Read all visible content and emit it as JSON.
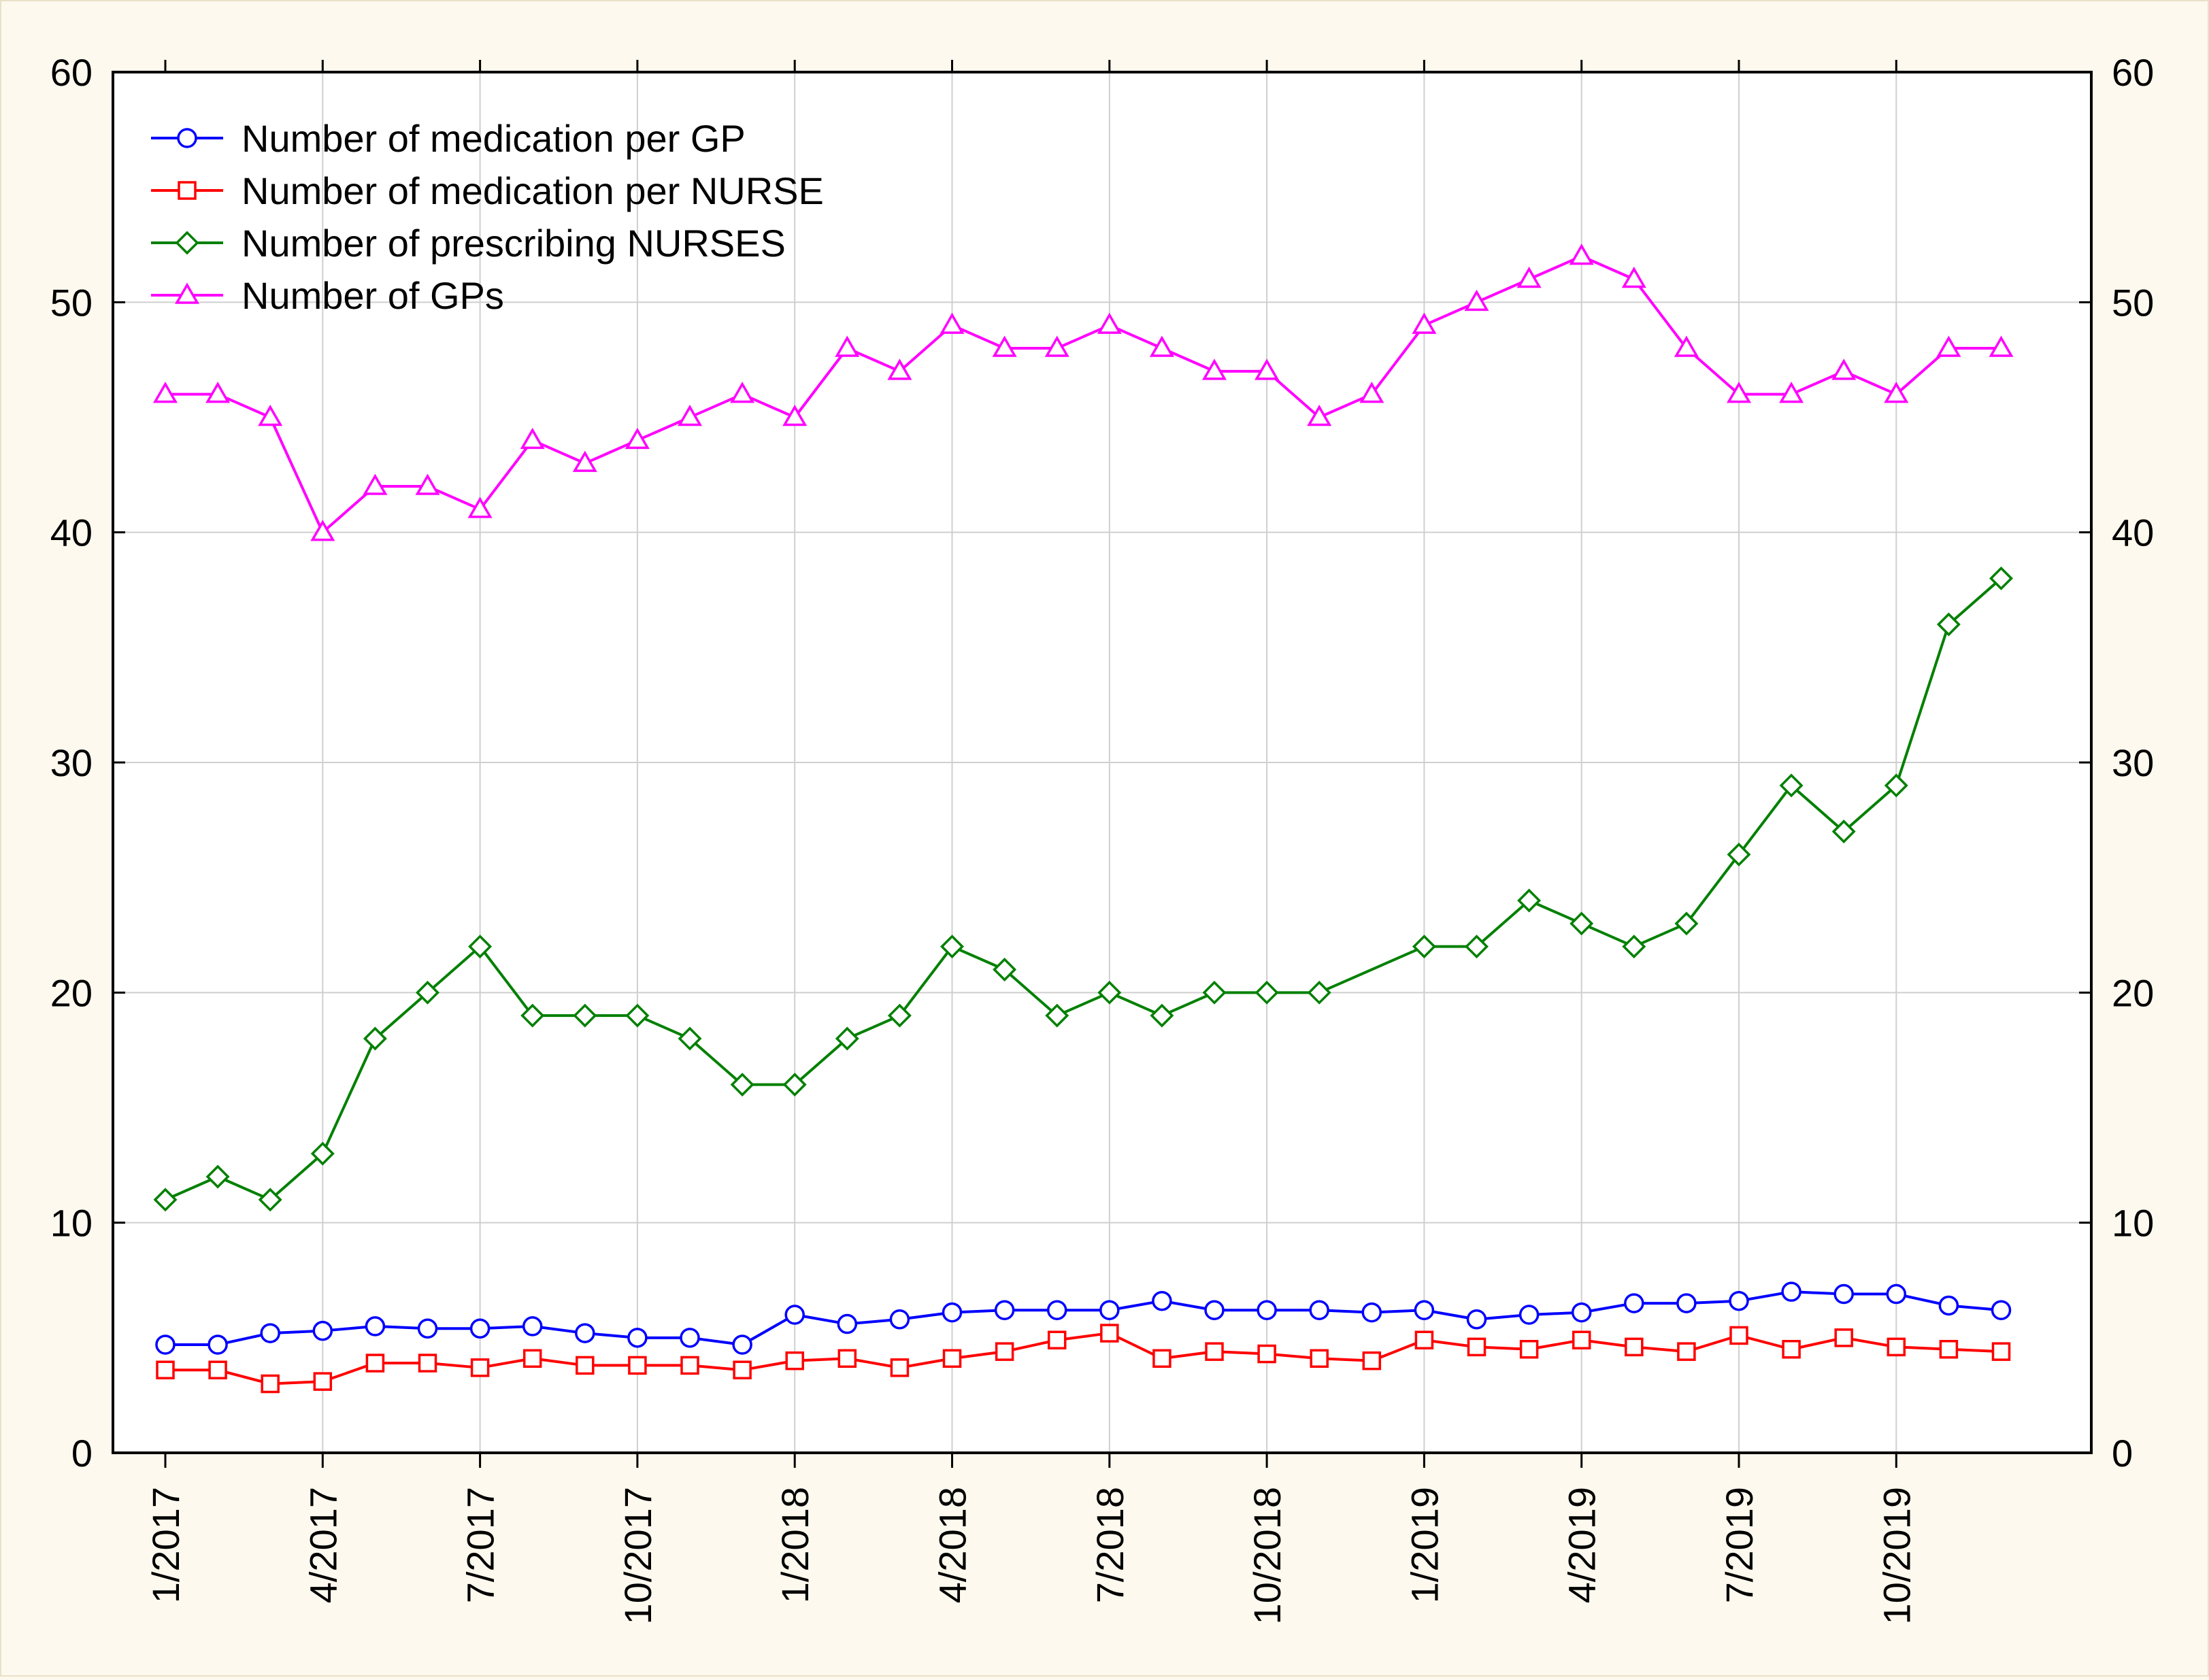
{
  "chart_data": {
    "type": "line",
    "title": "",
    "xlabel": "",
    "ylabel": "",
    "ylim": [
      0,
      60
    ],
    "y_ticks": [
      "0",
      "10",
      "20",
      "30",
      "40",
      "50",
      "60"
    ],
    "y_ticks_right": [
      "0",
      "10",
      "20",
      "30",
      "40",
      "50",
      "60"
    ],
    "grid": true,
    "legend_position": "top-left",
    "x": [
      "1/2017",
      "2/2017",
      "3/2017",
      "4/2017",
      "5/2017",
      "6/2017",
      "7/2017",
      "8/2017",
      "9/2017",
      "10/2017",
      "11/2017",
      "12/2017",
      "1/2018",
      "2/2018",
      "3/2018",
      "4/2018",
      "5/2018",
      "6/2018",
      "7/2018",
      "8/2018",
      "9/2018",
      "10/2018",
      "11/2018",
      "12/2018",
      "1/2019",
      "2/2019",
      "3/2019",
      "4/2019",
      "5/2019",
      "6/2019",
      "7/2019",
      "8/2019",
      "9/2019",
      "10/2019",
      "11/2019",
      "12/2019"
    ],
    "x_tick_labels": [
      "1/2017",
      "4/2017",
      "7/2017",
      "10/2017",
      "1/2018",
      "4/2018",
      "7/2018",
      "10/2018",
      "1/2019",
      "4/2019",
      "7/2019",
      "10/2019"
    ],
    "series": [
      {
        "name": "Number of medication per GP",
        "color": "#0000ff",
        "marker": "circle",
        "values": [
          4.7,
          4.7,
          5.2,
          5.3,
          5.5,
          5.4,
          5.4,
          5.5,
          5.2,
          5.0,
          5.0,
          4.7,
          6.0,
          5.6,
          5.8,
          6.1,
          6.2,
          6.2,
          6.2,
          6.6,
          6.2,
          6.2,
          6.2,
          6.1,
          6.2,
          5.8,
          6.0,
          6.1,
          6.5,
          6.5,
          6.6,
          7.0,
          6.9,
          6.9,
          6.4,
          6.2
        ]
      },
      {
        "name": "Number of medication per NURSE",
        "color": "#ff0000",
        "marker": "square",
        "values": [
          3.6,
          3.6,
          3.0,
          3.1,
          3.9,
          3.9,
          3.7,
          4.1,
          3.8,
          3.8,
          3.8,
          3.6,
          4.0,
          4.1,
          3.7,
          4.1,
          4.4,
          4.9,
          5.2,
          4.1,
          4.4,
          4.3,
          4.1,
          4.0,
          4.9,
          4.6,
          4.5,
          4.9,
          4.6,
          4.4,
          5.1,
          4.5,
          5.0,
          4.6,
          4.5,
          4.4
        ]
      },
      {
        "name": "Number of prescribing NURSES",
        "color": "#008000",
        "marker": "diamond",
        "values": [
          11,
          12,
          11,
          13,
          18,
          20,
          22,
          19,
          19,
          19,
          18,
          16,
          16,
          18,
          19,
          22,
          21,
          19,
          20,
          19,
          20,
          20,
          20,
          null,
          22,
          22,
          24,
          23,
          22,
          23,
          26,
          29,
          27,
          29,
          36,
          38
        ]
      },
      {
        "name": "Number of GPs",
        "color": "#ff00ff",
        "marker": "triangle",
        "values": [
          46,
          46,
          45,
          40,
          42,
          42,
          41,
          44,
          43,
          44,
          45,
          46,
          45,
          48,
          47,
          49,
          48,
          48,
          49,
          48,
          47,
          47,
          45,
          46,
          49,
          50,
          51,
          52,
          51,
          48,
          46,
          46,
          47,
          46,
          48,
          48
        ]
      }
    ]
  }
}
